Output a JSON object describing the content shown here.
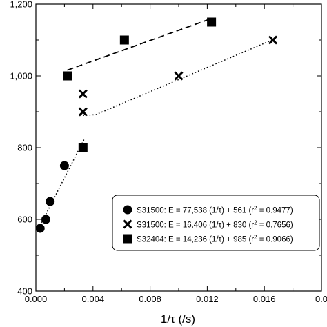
{
  "chart_data": {
    "type": "scatter",
    "title": "",
    "xlabel": "1/τ  (/s)",
    "ylabel": "",
    "xlim": [
      0.0,
      0.02
    ],
    "ylim": [
      400,
      1200
    ],
    "x_ticks": [
      "0.000",
      "0.004",
      "0.008",
      "0.012",
      "0.016",
      "0.0"
    ],
    "y_ticks": [
      "400",
      "600",
      "800",
      "1,000",
      "1,200"
    ],
    "grid": false,
    "legend_position": "lower-right",
    "series": [
      {
        "name": "S31500: E = 77,538 (1/τ) + 561 (r",
        "r2_label": "2",
        "r2_value": " = 0.9477)",
        "marker": "circle",
        "x": [
          0.0003,
          0.0007,
          0.001,
          0.002
        ],
        "y": [
          575,
          600,
          650,
          750
        ],
        "fit_line": {
          "style": "dotted",
          "x": [
            0.0003,
            0.0034
          ],
          "y": [
            583,
            825
          ]
        }
      },
      {
        "name": "S31500: E = 16,406 (1/τ) + 830 (r",
        "r2_label": "2",
        "r2_value": " = 0.7656)",
        "marker": "x",
        "x": [
          0.0033,
          0.0033,
          0.01,
          0.0166
        ],
        "y": [
          950,
          900,
          1000,
          1100
        ],
        "fit_line": {
          "style": "dotted",
          "x": [
            0.0033,
            0.0042,
            0.0166
          ],
          "y": [
            890,
            892,
            1101
          ]
        }
      },
      {
        "name": "S32404: E = 14,236 (1/τ) + 985 (r",
        "r2_label": "2",
        "r2_value": " = 0.9066)",
        "marker": "square",
        "x": [
          0.0022,
          0.0033,
          0.0062,
          0.0123
        ],
        "y": [
          1000,
          800,
          1100,
          1150
        ],
        "fit_line": {
          "style": "dashed",
          "x": [
            0.0022,
            0.0123
          ],
          "y": [
            1016,
            1160
          ]
        }
      }
    ]
  }
}
